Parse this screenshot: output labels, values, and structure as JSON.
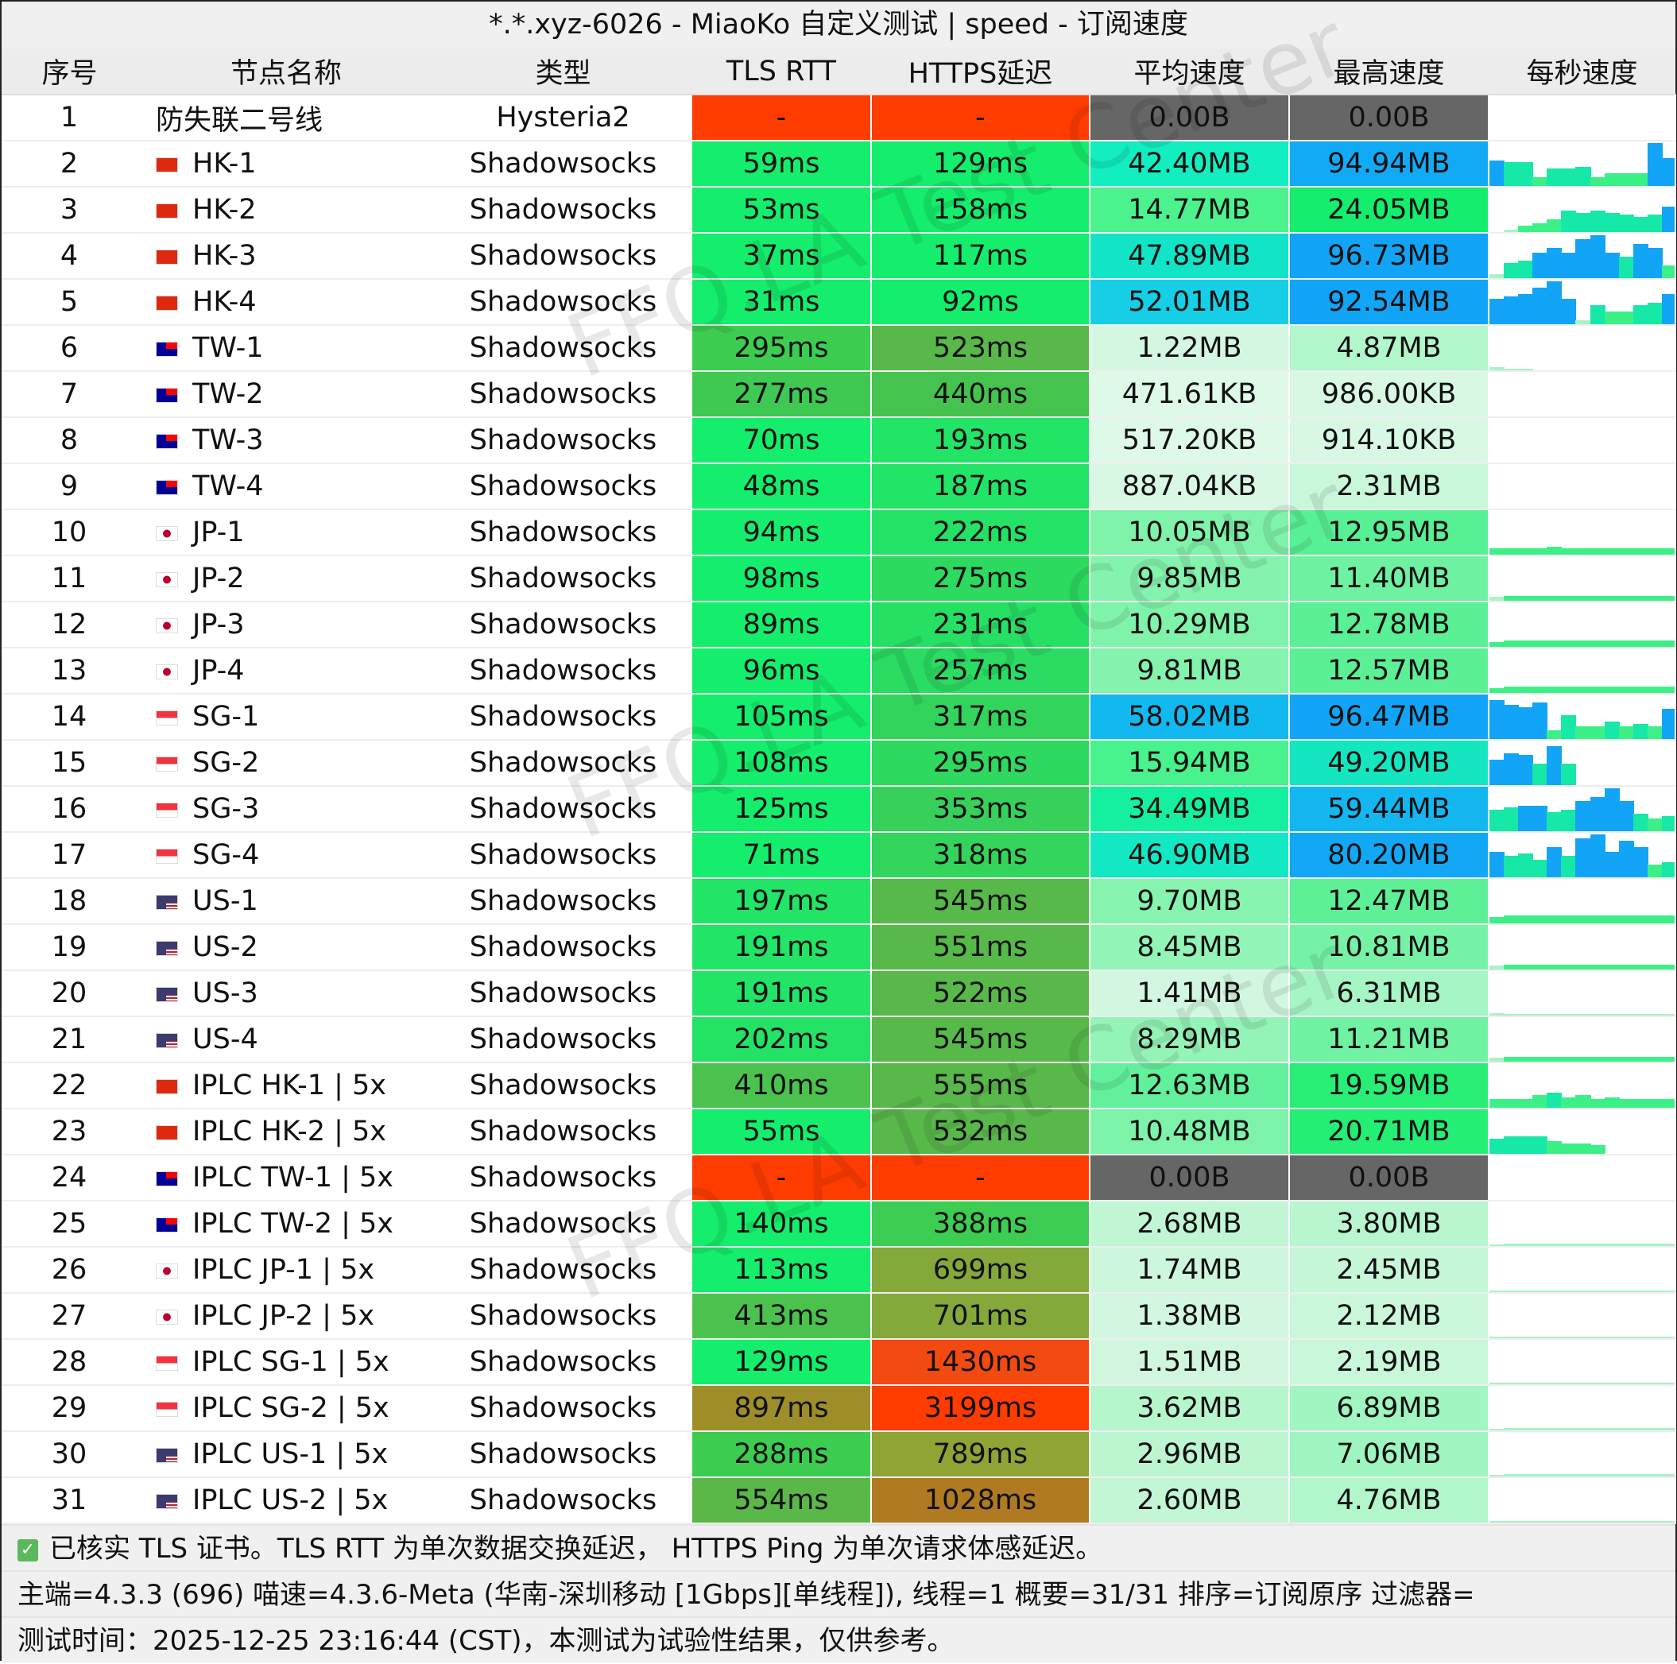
{
  "title": "*.*.xyz-6026 - MiaoKo 自定义测试 | speed - 订阅速度",
  "headers": [
    "序号",
    "节点名称",
    "类型",
    "TLS RTT",
    "HTTPS延迟",
    "平均速度",
    "最高速度",
    "每秒速度"
  ],
  "flags": {
    "hk": "#de2910",
    "tw": "#fe0000",
    "jp": "#ffffff",
    "sg": "#ef3340",
    "us": "#3c3b6e"
  },
  "rows": [
    {
      "n": "1",
      "name": "防失联二号线",
      "flag": "",
      "type": "Hysteria2",
      "tls": "-",
      "https": "-",
      "avg": "0.00B",
      "max": "0.00B",
      "c": [
        "#ff3c00",
        "#ff3c00",
        "#666666",
        "#666666"
      ],
      "spark": []
    },
    {
      "n": "2",
      "name": "HK-1",
      "flag": "hk",
      "type": "Shadowsocks",
      "tls": "59ms",
      "https": "129ms",
      "avg": "42.40MB",
      "max": "94.94MB",
      "c": [
        "#14ee6c",
        "#14ee6c",
        "#12eec0",
        "#12aaf5"
      ],
      "spark": [
        0.6,
        0.55,
        0.55,
        0.2,
        0.4,
        0.4,
        0.45,
        0.2,
        0.3,
        0.3,
        0.3,
        1,
        0.65
      ]
    },
    {
      "n": "3",
      "name": "HK-2",
      "flag": "hk",
      "type": "Shadowsocks",
      "tls": "53ms",
      "https": "158ms",
      "avg": "14.77MB",
      "max": "24.05MB",
      "c": [
        "#14ee6c",
        "#14ee6c",
        "#4cf28e",
        "#14ee6c"
      ],
      "spark": [
        0,
        0.05,
        0.15,
        0.2,
        0.3,
        0.5,
        0.45,
        0.5,
        0.45,
        0.4,
        0.35,
        0.4,
        0.6
      ]
    },
    {
      "n": "4",
      "name": "HK-3",
      "flag": "hk",
      "type": "Shadowsocks",
      "tls": "37ms",
      "https": "117ms",
      "avg": "47.89MB",
      "max": "96.73MB",
      "c": [
        "#14ee6c",
        "#14ee6c",
        "#12e4c8",
        "#12a4f6"
      ],
      "spark": [
        0.1,
        0.35,
        0.4,
        0.6,
        0.7,
        0.6,
        0.9,
        1,
        0.6,
        0.5,
        0.8,
        0.7,
        0.3
      ]
    },
    {
      "n": "5",
      "name": "HK-4",
      "flag": "hk",
      "type": "Shadowsocks",
      "tls": "31ms",
      "https": "92ms",
      "avg": "52.01MB",
      "max": "92.54MB",
      "c": [
        "#14ee6c",
        "#14ee6c",
        "#16cfe6",
        "#12a4f6"
      ],
      "spark": [
        0.6,
        0.65,
        0.7,
        0.85,
        1,
        0.6,
        0.1,
        0.45,
        0.3,
        0.3,
        0.45,
        0.5,
        0.7
      ]
    },
    {
      "n": "6",
      "name": "TW-1",
      "flag": "tw",
      "type": "Shadowsocks",
      "tls": "295ms",
      "https": "523ms",
      "avg": "1.22MB",
      "max": "4.87MB",
      "c": [
        "#3ccd50",
        "#58b84a",
        "#d4f7e2",
        "#b2f6cc"
      ],
      "spark": [
        0.08,
        0.04,
        0.02,
        0,
        0,
        0,
        0,
        0,
        0,
        0,
        0,
        0,
        0
      ]
    },
    {
      "n": "7",
      "name": "TW-2",
      "flag": "tw",
      "type": "Shadowsocks",
      "tls": "277ms",
      "https": "440ms",
      "avg": "471.61KB",
      "max": "986.00KB",
      "c": [
        "#3fc852",
        "#46c24e",
        "#dff9e8",
        "#d9f8e4"
      ],
      "spark": []
    },
    {
      "n": "8",
      "name": "TW-3",
      "flag": "tw",
      "type": "Shadowsocks",
      "tls": "70ms",
      "https": "193ms",
      "avg": "517.20KB",
      "max": "914.10KB",
      "c": [
        "#14ee6c",
        "#22e466",
        "#dff9e8",
        "#d9f8e4"
      ],
      "spark": []
    },
    {
      "n": "9",
      "name": "TW-4",
      "flag": "tw",
      "type": "Shadowsocks",
      "tls": "48ms",
      "https": "187ms",
      "avg": "887.04KB",
      "max": "2.31MB",
      "c": [
        "#14ee6c",
        "#22e466",
        "#d9f8e4",
        "#c8f7da"
      ],
      "spark": []
    },
    {
      "n": "10",
      "name": "JP-1",
      "flag": "jp",
      "type": "Shadowsocks",
      "tls": "94ms",
      "https": "222ms",
      "avg": "10.05MB",
      "max": "12.95MB",
      "c": [
        "#14ee6c",
        "#24e266",
        "#80f3aa",
        "#58f094"
      ],
      "spark": [
        0.15,
        0.15,
        0.15,
        0.15,
        0.18,
        0.15,
        0.15,
        0.15,
        0.15,
        0.15,
        0.15,
        0.15,
        0.15
      ]
    },
    {
      "n": "11",
      "name": "JP-2",
      "flag": "jp",
      "type": "Shadowsocks",
      "tls": "98ms",
      "https": "275ms",
      "avg": "9.85MB",
      "max": "11.40MB",
      "c": [
        "#14ee6c",
        "#2cda60",
        "#84f3ad",
        "#6ef2a2"
      ],
      "spark": [
        0.1,
        0.12,
        0.12,
        0.12,
        0.12,
        0.12,
        0.12,
        0.12,
        0.12,
        0.12,
        0.12,
        0.12,
        0.12
      ]
    },
    {
      "n": "12",
      "name": "JP-3",
      "flag": "jp",
      "type": "Shadowsocks",
      "tls": "89ms",
      "https": "231ms",
      "avg": "10.29MB",
      "max": "12.78MB",
      "c": [
        "#14ee6c",
        "#26e064",
        "#80f3aa",
        "#5af095"
      ],
      "spark": [
        0.12,
        0.14,
        0.14,
        0.14,
        0.14,
        0.14,
        0.14,
        0.14,
        0.14,
        0.14,
        0.14,
        0.14,
        0.14
      ]
    },
    {
      "n": "13",
      "name": "JP-4",
      "flag": "jp",
      "type": "Shadowsocks",
      "tls": "96ms",
      "https": "257ms",
      "avg": "9.81MB",
      "max": "12.57MB",
      "c": [
        "#14ee6c",
        "#2adc62",
        "#84f3ad",
        "#5cf096"
      ],
      "spark": [
        0.12,
        0.14,
        0.14,
        0.14,
        0.14,
        0.14,
        0.14,
        0.14,
        0.14,
        0.14,
        0.14,
        0.14,
        0.14
      ]
    },
    {
      "n": "14",
      "name": "SG-1",
      "flag": "sg",
      "type": "Shadowsocks",
      "tls": "105ms",
      "https": "317ms",
      "avg": "58.02MB",
      "max": "96.47MB",
      "c": [
        "#14ee6c",
        "#32d45c",
        "#12b8f0",
        "#12a4f6"
      ],
      "spark": [
        0.9,
        0.8,
        0.75,
        0.85,
        0.2,
        0.55,
        0.3,
        0.3,
        0.4,
        0.3,
        0.35,
        0.3,
        0.7
      ]
    },
    {
      "n": "15",
      "name": "SG-2",
      "flag": "sg",
      "type": "Shadowsocks",
      "tls": "108ms",
      "https": "295ms",
      "avg": "15.94MB",
      "max": "49.20MB",
      "c": [
        "#14ee6c",
        "#2fd85e",
        "#48f28c",
        "#14e6c0"
      ],
      "spark": [
        0.6,
        0.75,
        0.7,
        0.5,
        0.9,
        0.5,
        0,
        0,
        0,
        0,
        0,
        0,
        0
      ]
    },
    {
      "n": "16",
      "name": "SG-3",
      "flag": "sg",
      "type": "Shadowsocks",
      "tls": "125ms",
      "https": "353ms",
      "avg": "34.49MB",
      "max": "59.44MB",
      "c": [
        "#14ee6c",
        "#36d05a",
        "#14f0a0",
        "#14b6f0"
      ],
      "spark": [
        0.5,
        0.55,
        0.6,
        0.6,
        0.45,
        0.5,
        0.7,
        0.8,
        1,
        0.7,
        0.4,
        0.3,
        0.35
      ]
    },
    {
      "n": "17",
      "name": "SG-4",
      "flag": "sg",
      "type": "Shadowsocks",
      "tls": "71ms",
      "https": "318ms",
      "avg": "46.90MB",
      "max": "80.20MB",
      "c": [
        "#14ee6c",
        "#32d45c",
        "#12e8c4",
        "#12a8f5"
      ],
      "spark": [
        0.6,
        0.5,
        0.55,
        0.4,
        0.7,
        0.5,
        0.9,
        1,
        0.6,
        0.85,
        0.7,
        0.3,
        0.35
      ]
    },
    {
      "n": "18",
      "name": "US-1",
      "flag": "us",
      "type": "Shadowsocks",
      "tls": "197ms",
      "https": "545ms",
      "avg": "9.70MB",
      "max": "12.47MB",
      "c": [
        "#22e466",
        "#56b94a",
        "#86f3ae",
        "#5ef097"
      ],
      "spark": [
        0.15,
        0.18,
        0.18,
        0.18,
        0.18,
        0.18,
        0.18,
        0.18,
        0.18,
        0.18,
        0.18,
        0.18,
        0.18
      ]
    },
    {
      "n": "19",
      "name": "US-2",
      "flag": "us",
      "type": "Shadowsocks",
      "tls": "191ms",
      "https": "551ms",
      "avg": "8.45MB",
      "max": "10.81MB",
      "c": [
        "#22e466",
        "#56b94a",
        "#92f4b6",
        "#76f2a6"
      ],
      "spark": [
        0.1,
        0.12,
        0.12,
        0.12,
        0.12,
        0.12,
        0.12,
        0.12,
        0.12,
        0.12,
        0.12,
        0.12,
        0.12
      ]
    },
    {
      "n": "20",
      "name": "US-3",
      "flag": "us",
      "type": "Shadowsocks",
      "tls": "191ms",
      "https": "522ms",
      "avg": "1.41MB",
      "max": "6.31MB",
      "c": [
        "#22e466",
        "#58b84a",
        "#d2f7e0",
        "#a6f5c4"
      ],
      "spark": [
        0.05,
        0.04,
        0.03,
        0.03,
        0.03,
        0.03,
        0.03,
        0.03,
        0.03,
        0.03,
        0.03,
        0.03,
        0.03
      ]
    },
    {
      "n": "21",
      "name": "US-4",
      "flag": "us",
      "type": "Shadowsocks",
      "tls": "202ms",
      "https": "545ms",
      "avg": "8.29MB",
      "max": "11.21MB",
      "c": [
        "#24e266",
        "#56b94a",
        "#94f4b7",
        "#70f2a3"
      ],
      "spark": [
        0.1,
        0.12,
        0.12,
        0.12,
        0.12,
        0.12,
        0.12,
        0.12,
        0.12,
        0.12,
        0.12,
        0.12,
        0.12
      ]
    },
    {
      "n": "22",
      "name": "IPLC HK-1 | 5x",
      "flag": "hk",
      "type": "Shadowsocks",
      "tls": "410ms",
      "https": "555ms",
      "avg": "12.63MB",
      "max": "19.59MB",
      "c": [
        "#4cc24e",
        "#58b84a",
        "#62f09c",
        "#28ee76"
      ],
      "spark": [
        0.2,
        0.2,
        0.2,
        0.3,
        0.35,
        0.25,
        0.3,
        0.2,
        0.25,
        0.2,
        0.2,
        0.2,
        0.2
      ]
    },
    {
      "n": "23",
      "name": "IPLC HK-2 | 5x",
      "flag": "hk",
      "type": "Shadowsocks",
      "tls": "55ms",
      "https": "532ms",
      "avg": "10.48MB",
      "max": "20.71MB",
      "c": [
        "#14ee6c",
        "#58b84a",
        "#7cf3a8",
        "#24ee74"
      ],
      "spark": [
        0.35,
        0.4,
        0.4,
        0.4,
        0.3,
        0.25,
        0.25,
        0.2,
        0,
        0,
        0,
        0,
        0
      ]
    },
    {
      "n": "24",
      "name": "IPLC TW-1 | 5x",
      "flag": "tw",
      "type": "Shadowsocks",
      "tls": "-",
      "https": "-",
      "avg": "0.00B",
      "max": "0.00B",
      "c": [
        "#ff3c00",
        "#ff3c00",
        "#666666",
        "#666666"
      ],
      "spark": []
    },
    {
      "n": "25",
      "name": "IPLC TW-2 | 5x",
      "flag": "tw",
      "type": "Shadowsocks",
      "tls": "140ms",
      "https": "388ms",
      "avg": "2.68MB",
      "max": "3.80MB",
      "c": [
        "#14ee6c",
        "#3ccd52",
        "#c0f6d4",
        "#b8f6cf"
      ],
      "spark": [
        0.04,
        0.05,
        0.05,
        0.05,
        0.05,
        0.05,
        0.05,
        0.05,
        0.05,
        0.05,
        0.05,
        0.05,
        0.05
      ]
    },
    {
      "n": "26",
      "name": "IPLC JP-1 | 5x",
      "flag": "jp",
      "type": "Shadowsocks",
      "tls": "113ms",
      "https": "699ms",
      "avg": "1.74MB",
      "max": "2.45MB",
      "c": [
        "#14ee6c",
        "#84a83a",
        "#ccf7dc",
        "#c6f7d8"
      ],
      "spark": [
        0.03,
        0.04,
        0.04,
        0.04,
        0.04,
        0.04,
        0.04,
        0.04,
        0.04,
        0.04,
        0.04,
        0.04,
        0.04
      ]
    },
    {
      "n": "27",
      "name": "IPLC JP-2 | 5x",
      "flag": "jp",
      "type": "Shadowsocks",
      "tls": "413ms",
      "https": "701ms",
      "avg": "1.38MB",
      "max": "2.12MB",
      "c": [
        "#4cc24e",
        "#84a83a",
        "#d2f7e0",
        "#caf7da"
      ],
      "spark": [
        0.03,
        0.03,
        0.03,
        0.03,
        0.03,
        0.03,
        0.03,
        0.03,
        0.03,
        0.03,
        0.03,
        0.03,
        0.03
      ]
    },
    {
      "n": "28",
      "name": "IPLC SG-1 | 5x",
      "flag": "sg",
      "type": "Shadowsocks",
      "tls": "129ms",
      "https": "1430ms",
      "avg": "1.51MB",
      "max": "2.19MB",
      "c": [
        "#14ee6c",
        "#f24a10",
        "#d0f7de",
        "#c8f7da"
      ],
      "spark": [
        0.03,
        0.03,
        0.03,
        0.03,
        0.03,
        0.03,
        0.03,
        0.03,
        0.03,
        0.03,
        0.03,
        0.03,
        0.03
      ]
    },
    {
      "n": "29",
      "name": "IPLC SG-2 | 5x",
      "flag": "sg",
      "type": "Shadowsocks",
      "tls": "897ms",
      "https": "3199ms",
      "avg": "3.62MB",
      "max": "6.89MB",
      "c": [
        "#9e8e2a",
        "#ff3c00",
        "#b6f6cd",
        "#a0f5c0"
      ],
      "spark": [
        0.04,
        0.05,
        0.05,
        0.05,
        0.05,
        0.05,
        0.06,
        0.05,
        0.05,
        0.05,
        0.05,
        0.05,
        0.05
      ]
    },
    {
      "n": "30",
      "name": "IPLC US-1 | 5x",
      "flag": "us",
      "type": "Shadowsocks",
      "tls": "288ms",
      "https": "789ms",
      "avg": "2.96MB",
      "max": "7.06MB",
      "c": [
        "#3ccd50",
        "#8ea434",
        "#bcf6d1",
        "#9ef5bf"
      ],
      "spark": [
        0.04,
        0.05,
        0.05,
        0.05,
        0.05,
        0.05,
        0.05,
        0.05,
        0.05,
        0.05,
        0.05,
        0.05,
        0.05
      ]
    },
    {
      "n": "31",
      "name": "IPLC US-2 | 5x",
      "flag": "us",
      "type": "Shadowsocks",
      "tls": "554ms",
      "https": "1028ms",
      "avg": "2.60MB",
      "max": "4.76MB",
      "c": [
        "#5ab848",
        "#b07a22",
        "#c2f6d5",
        "#b2f6cb"
      ],
      "spark": [
        0.03,
        0.04,
        0.04,
        0.04,
        0.04,
        0.04,
        0.04,
        0.04,
        0.04,
        0.04,
        0.04,
        0.04,
        0.04
      ]
    }
  ],
  "footer": {
    "check_icon": "checkbox-checked",
    "note": "已核实 TLS 证书。TLS RTT 为单次数据交换延迟， HTTPS Ping 为单次请求体感延迟。",
    "info": "主端=4.3.3 (696) 喵速=4.3.6-Meta (华南-深圳移动 [1Gbps][单线程]), 线程=1 概要=31/31 排序=订阅原序 过滤器=",
    "time": "测试时间：2025-12-25 23:16:44 (CST)，本测试为试验性结果，仅供参考。"
  },
  "watermark": "FFQ.LA Test Center"
}
